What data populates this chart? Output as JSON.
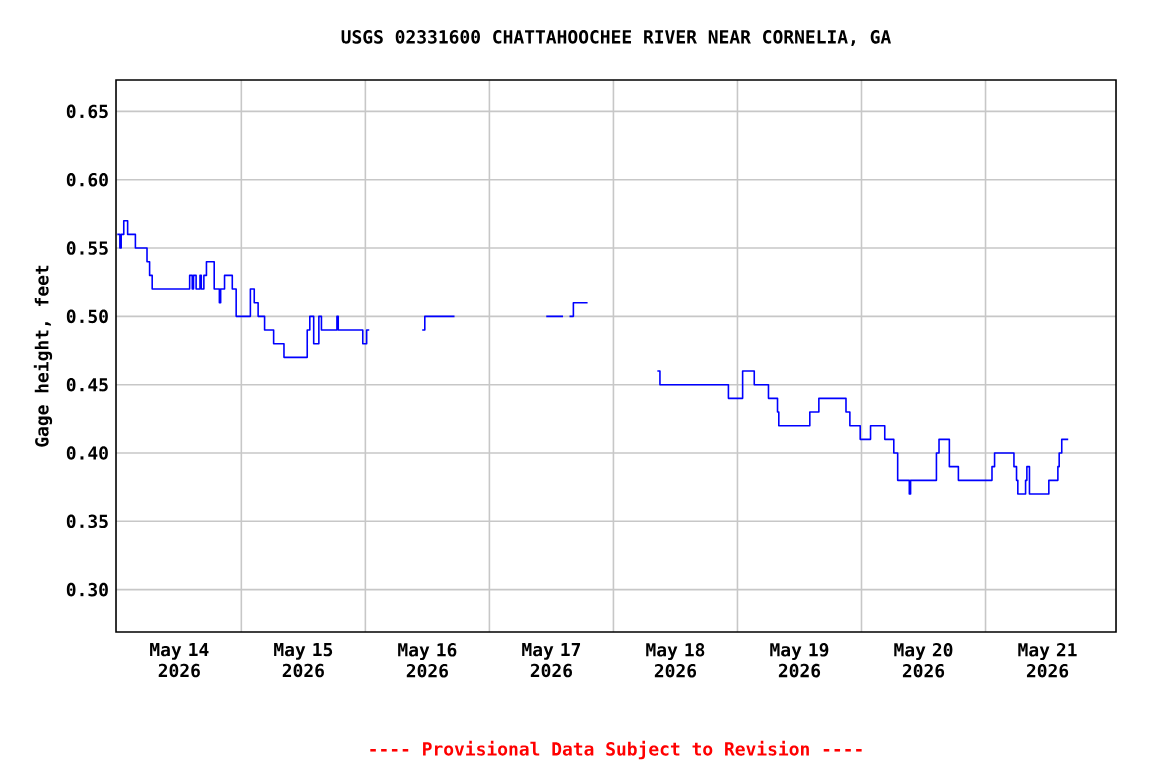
{
  "chart_data": {
    "type": "step",
    "title": "USGS 02331600 CHATTAHOOCHEE RIVER NEAR CORNELIA, GA",
    "ylabel": "Gage height, feet",
    "annotations": [
      "---- Provisional Data Subject to Revision ----"
    ],
    "x": [
      "2026-05-14T00:00",
      "2026-05-14T00:30",
      "2026-05-14T00:45",
      "2026-05-14T01:15",
      "2026-05-14T02:00",
      "2026-05-14T03:30",
      "2026-05-14T05:45",
      "2026-05-14T06:15",
      "2026-05-14T06:45",
      "2026-05-14T14:00",
      "2026-05-14T14:30",
      "2026-05-14T14:45",
      "2026-05-14T15:15",
      "2026-05-14T16:00",
      "2026-05-14T16:15",
      "2026-05-14T16:45",
      "2026-05-14T17:15",
      "2026-05-14T18:45",
      "2026-05-14T19:45",
      "2026-05-14T20:00",
      "2026-05-14T20:45",
      "2026-05-14T22:15",
      "2026-05-14T23:00",
      "2026-05-15T01:45",
      "2026-05-15T02:30",
      "2026-05-15T03:15",
      "2026-05-15T04:30",
      "2026-05-15T06:15",
      "2026-05-15T08:15",
      "2026-05-15T12:45",
      "2026-05-15T13:15",
      "2026-05-15T14:00",
      "2026-05-15T15:00",
      "2026-05-15T15:30",
      "2026-05-15T18:30",
      "2026-05-15T18:45",
      "2026-05-15T23:30",
      "2026-05-16T00:15",
      "2026-05-16T00:45",
      "2026-05-16T01:00",
      "2026-05-16T11:00",
      "2026-05-16T11:30",
      "2026-05-16T17:15",
      "2026-05-16T17:30",
      "2026-05-17T11:00",
      "2026-05-17T14:15",
      "2026-05-17T14:30",
      "2026-05-17T15:30",
      "2026-05-17T16:15",
      "2026-05-17T19:00",
      "2026-05-17T19:15",
      "2026-05-18T08:30",
      "2026-05-18T09:00",
      "2026-05-18T22:15",
      "2026-05-19T01:00",
      "2026-05-19T03:15",
      "2026-05-19T06:00",
      "2026-05-19T07:45",
      "2026-05-19T08:00",
      "2026-05-19T14:00",
      "2026-05-19T15:45",
      "2026-05-19T21:00",
      "2026-05-19T21:45",
      "2026-05-19T23:45",
      "2026-05-20T01:45",
      "2026-05-20T04:30",
      "2026-05-20T06:15",
      "2026-05-20T07:00",
      "2026-05-20T09:15",
      "2026-05-20T09:30",
      "2026-05-20T14:30",
      "2026-05-20T15:00",
      "2026-05-20T17:00",
      "2026-05-20T18:45",
      "2026-05-21T01:15",
      "2026-05-21T01:45",
      "2026-05-21T05:30",
      "2026-05-21T06:00",
      "2026-05-21T06:15",
      "2026-05-21T07:45",
      "2026-05-21T08:00",
      "2026-05-21T08:30",
      "2026-05-21T12:15",
      "2026-05-21T14:00",
      "2026-05-21T14:15",
      "2026-05-21T14:45",
      "2026-05-21T16:00"
    ],
    "values": [
      0.56,
      0.55,
      0.56,
      0.57,
      0.56,
      0.55,
      0.54,
      0.53,
      0.52,
      0.53,
      0.52,
      0.53,
      0.52,
      0.53,
      0.52,
      0.53,
      0.54,
      0.52,
      0.51,
      0.52,
      0.53,
      0.52,
      0.5,
      0.52,
      0.51,
      0.5,
      0.49,
      0.48,
      0.47,
      0.49,
      0.5,
      0.48,
      0.5,
      0.49,
      0.5,
      0.49,
      0.48,
      0.49,
      0.49,
      null,
      0.49,
      0.5,
      0.5,
      null,
      0.5,
      0.5,
      null,
      0.5,
      0.51,
      0.51,
      null,
      0.46,
      0.45,
      0.44,
      0.46,
      0.45,
      0.44,
      0.43,
      0.42,
      0.43,
      0.44,
      0.43,
      0.42,
      0.41,
      0.42,
      0.41,
      0.4,
      0.38,
      0.37,
      0.38,
      0.4,
      0.41,
      0.39,
      0.38,
      0.39,
      0.4,
      0.39,
      0.38,
      0.37,
      0.38,
      0.39,
      0.37,
      0.38,
      0.39,
      0.4,
      0.41,
      0.41
    ],
    "color": "#0000ff",
    "ylim": [
      0.269,
      0.673
    ],
    "yticks": [
      {
        "value": 0.3,
        "label": "0.30"
      },
      0.35,
      {
        "value": 0.4,
        "label": "0.40"
      },
      0.45,
      {
        "value": 0.5,
        "label": "0.50"
      },
      0.55,
      {
        "value": 0.6,
        "label": "0.60"
      },
      0.65
    ],
    "xlim": [
      "2026-05-13T23:45",
      "2026-05-22T01:15"
    ],
    "xticks": [
      {
        "value": "2026-05-14T12:00",
        "label": "May 14 2026"
      },
      {
        "value": "2026-05-15T00:00",
        "label": null
      },
      {
        "value": "2026-05-15T12:00",
        "label": "May 15 2026"
      },
      {
        "value": "2026-05-16T00:00",
        "label": null
      },
      {
        "value": "2026-05-16T12:00",
        "label": "May 16 2026"
      },
      {
        "value": "2026-05-17T00:00",
        "label": null
      },
      {
        "value": "2026-05-17T12:00",
        "label": "May 17 2026"
      },
      {
        "value": "2026-05-18T00:00",
        "label": null
      },
      {
        "value": "2026-05-18T12:00",
        "label": "May 18 2026"
      },
      {
        "value": "2026-05-19T00:00",
        "label": null
      },
      {
        "value": "2026-05-19T12:00",
        "label": "May 19 2026"
      },
      {
        "value": "2026-05-20T00:00",
        "label": null
      },
      {
        "value": "2026-05-20T12:00",
        "label": "May 20 2026"
      },
      {
        "value": "2026-05-21T00:00",
        "label": null
      },
      {
        "value": "2026-05-21T12:00",
        "label": "May 21 2026"
      }
    ],
    "grid": true,
    "marker": "none",
    "line_style": "solid"
  }
}
